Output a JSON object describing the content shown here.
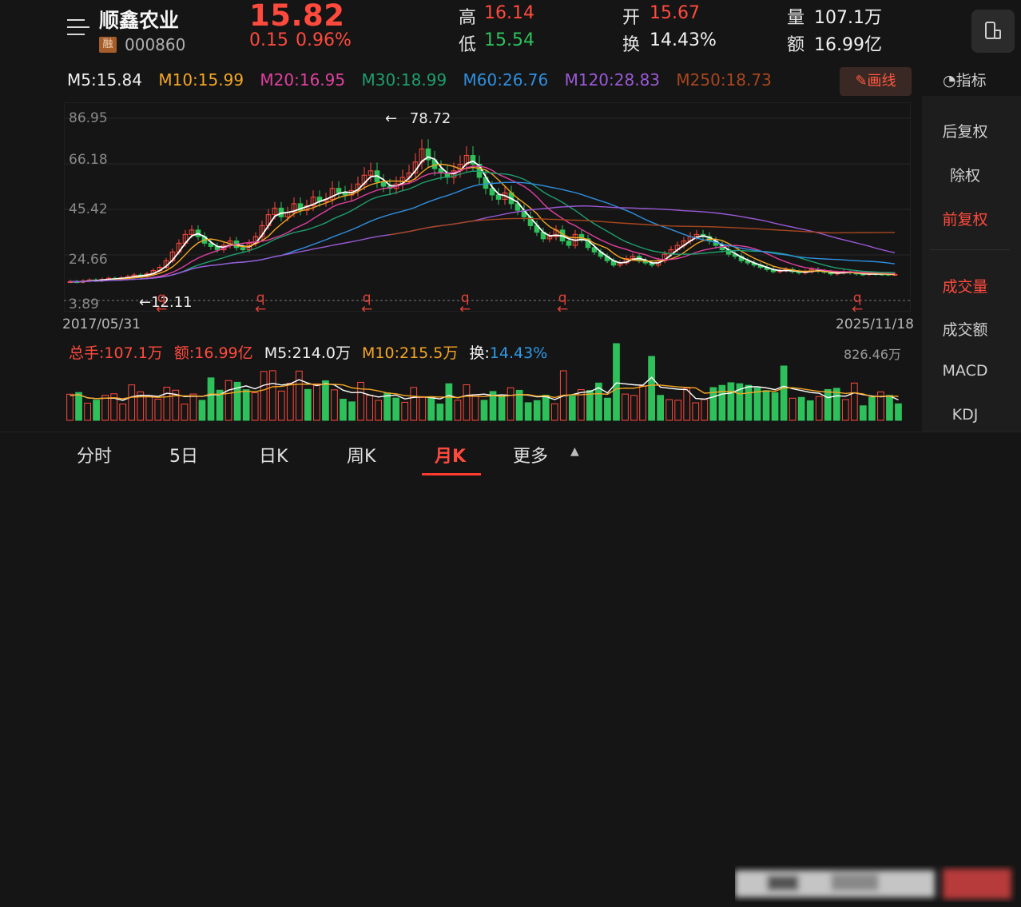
{
  "header": {
    "stock_name": "顺鑫农业",
    "margin_badge": "融",
    "stock_code": "000860",
    "price": "15.82",
    "change": "0.15",
    "change_pct": "0.96%",
    "high_label": "高",
    "high": "16.14",
    "low_label": "低",
    "low": "15.54",
    "open_label": "开",
    "open": "15.67",
    "turnover_label": "换",
    "turnover": "14.43%",
    "volume_label": "量",
    "volume": "107.1万",
    "amount_label": "额",
    "amount": "16.99亿"
  },
  "ma_row": {
    "m5": "M5:15.84",
    "m10": "M10:15.99",
    "m20": "M20:16.95",
    "m30": "M30:18.99",
    "m60": "M60:26.76",
    "m120": "M120:28.83",
    "m250": "M250:18.73",
    "draw_button": "画线"
  },
  "side": {
    "indicator_title": "指标",
    "items": [
      "后复权",
      "除权",
      "前复权",
      "成交量",
      "成交额",
      "MACD",
      "KDJ"
    ]
  },
  "chart": {
    "y_ticks": [
      "86.95",
      "66.18",
      "45.42",
      "24.66",
      "3.89"
    ],
    "date_start": "2017/05/31",
    "date_end": "2025/11/18",
    "max_label": "78.72",
    "min_label": "12.11"
  },
  "volume": {
    "total": "总手:107.1万",
    "amount": "额:16.99亿",
    "m5": "M5:214.0万",
    "m10": "M10:215.5万",
    "turnover_label": "换:",
    "turnover": "14.43%",
    "max": "826.46万"
  },
  "tabs": {
    "intraday": "分时",
    "five_day": "5日",
    "daily": "日K",
    "weekly": "周K",
    "monthly": "月K",
    "more": "更多"
  },
  "colors": {
    "up": "#ff4a3d",
    "down": "#2ec15b",
    "m5": "#ffffff",
    "m10": "#f5a623",
    "m20": "#e040a0",
    "m30": "#1f9e6e",
    "m60": "#2f8fe0",
    "m120": "#9b59d6",
    "m250": "#a8461e"
  },
  "chart_data": {
    "type": "candlestick",
    "x_start": "2017/05/31",
    "x_end": "2025/11/18",
    "ylim": [
      3.89,
      86.95
    ],
    "y_ticks": [
      86.95,
      66.18,
      45.42,
      24.66,
      3.89
    ],
    "high": 78.72,
    "low": 12.11,
    "close_path": [
      12.5,
      12.3,
      12.8,
      13.2,
      12.9,
      13.5,
      14.0,
      13.6,
      14.2,
      14.8,
      15.5,
      14.9,
      16.0,
      17.5,
      19.0,
      22.0,
      26.0,
      30.0,
      34.0,
      36.0,
      33.0,
      30.0,
      28.5,
      27.0,
      29.0,
      31.0,
      28.0,
      27.0,
      30.0,
      33.0,
      38.0,
      43.0,
      46.0,
      42.0,
      44.0,
      48.0,
      45.0,
      47.0,
      51.0,
      49.0,
      50.0,
      55.0,
      53.0,
      52.0,
      54.0,
      57.0,
      61.0,
      63.0,
      58.0,
      56.0,
      55.0,
      57.0,
      60.0,
      62.0,
      67.0,
      73.0,
      68.0,
      64.0,
      62.0,
      60.0,
      63.0,
      66.0,
      70.0,
      66.0,
      60.0,
      55.0,
      52.0,
      50.0,
      53.0,
      48.0,
      45.0,
      42.0,
      38.0,
      35.0,
      32.0,
      33.0,
      36.0,
      31.0,
      29.0,
      34.0,
      32.0,
      28.0,
      26.0,
      24.0,
      22.0,
      20.0,
      21.0,
      23.0,
      24.0,
      22.0,
      21.0,
      20.0,
      22.0,
      25.0,
      27.0,
      29.0,
      31.0,
      33.0,
      34.0,
      33.0,
      31.0,
      29.0,
      27.0,
      25.0,
      24.0,
      22.0,
      21.0,
      20.0,
      19.0,
      18.0,
      17.0,
      17.5,
      18.0,
      17.0,
      16.5,
      17.0,
      18.0,
      17.2,
      16.8,
      16.0,
      16.5,
      17.0,
      16.5,
      16.0,
      15.8,
      16.2,
      16.0,
      15.9,
      15.8,
      15.82
    ]
  }
}
